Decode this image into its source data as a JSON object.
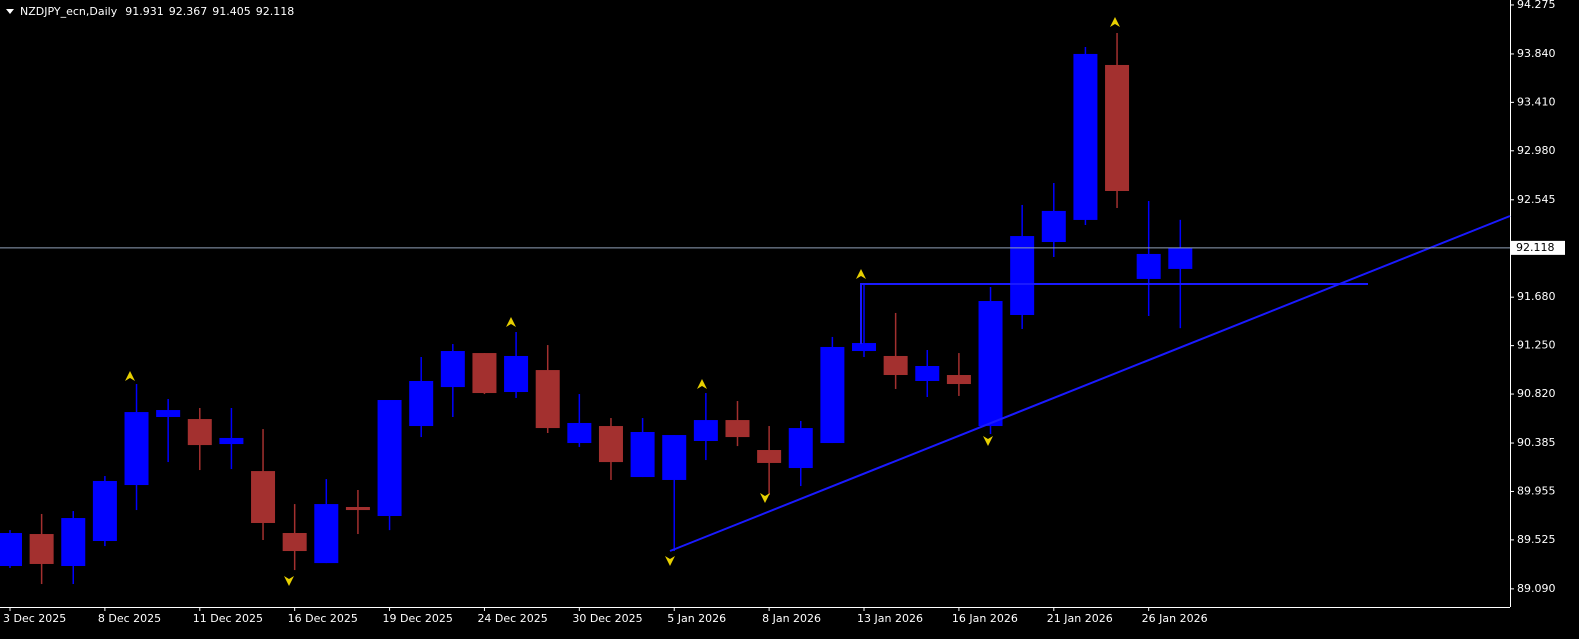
{
  "chart_data": {
    "type": "candlestick",
    "title": "NZDJPY_ecn,Daily",
    "categories": [
      "3 Dec 2025",
      null,
      null,
      "8 Dec 2025",
      null,
      null,
      "11 Dec 2025",
      null,
      null,
      "16 Dec 2025",
      null,
      null,
      "19 Dec 2025",
      null,
      null,
      "24 Dec 2025",
      null,
      null,
      "30 Dec 2025",
      null,
      null,
      "5 Jan 2026",
      null,
      null,
      "8 Jan 2026",
      null,
      null,
      "13 Jan 2026",
      null,
      null,
      "16 Jan 2026",
      null,
      null,
      "21 Jan 2026",
      null,
      null,
      "26 Jan 2026",
      null
    ],
    "open": [
      89.293,
      89.577,
      89.293,
      89.515,
      90.012,
      90.616,
      90.598,
      90.376,
      90.136,
      89.586,
      89.319,
      89.817,
      89.737,
      90.536,
      90.882,
      91.184,
      90.838,
      91.033,
      90.385,
      90.536,
      90.083,
      90.057,
      90.403,
      90.589,
      90.323,
      90.163,
      90.385,
      91.202,
      91.158,
      90.936,
      90.989,
      90.536,
      91.522,
      92.17,
      92.366,
      93.742,
      91.842,
      91.931
    ],
    "high": [
      89.612,
      89.755,
      89.781,
      90.092,
      90.909,
      90.776,
      90.696,
      90.696,
      90.509,
      89.843,
      90.065,
      89.968,
      90.767,
      91.149,
      91.264,
      91.184,
      91.371,
      91.255,
      90.82,
      90.607,
      90.607,
      90.456,
      90.829,
      90.758,
      90.536,
      90.581,
      91.327,
      91.797,
      91.54,
      91.211,
      91.184,
      91.771,
      92.499,
      92.694,
      93.902,
      94.026,
      92.534,
      92.367
    ],
    "low": [
      89.275,
      89.133,
      89.133,
      89.47,
      89.79,
      90.216,
      90.145,
      90.154,
      89.524,
      89.257,
      89.319,
      89.577,
      89.612,
      90.438,
      90.616,
      90.82,
      90.785,
      90.474,
      90.35,
      90.057,
      90.083,
      89.426,
      90.234,
      90.358,
      89.923,
      90.003,
      90.385,
      91.149,
      90.865,
      90.794,
      90.803,
      90.465,
      91.398,
      92.037,
      92.321,
      92.472,
      91.513,
      91.405
    ],
    "close": [
      89.586,
      89.311,
      89.719,
      90.048,
      90.66,
      90.678,
      90.367,
      90.43,
      89.675,
      89.426,
      89.843,
      89.79,
      90.767,
      90.936,
      91.202,
      90.829,
      91.158,
      90.518,
      90.563,
      90.216,
      90.483,
      90.456,
      90.589,
      90.438,
      90.208,
      90.518,
      91.238,
      91.273,
      90.989,
      91.069,
      90.909,
      91.646,
      92.223,
      92.446,
      93.84,
      92.623,
      92.064,
      92.118
    ],
    "up_color": "#0000ff",
    "down_color": "#a3302f",
    "ylim": [
      88.929,
      94.319
    ],
    "yticks": [
      {
        "value": 89.09,
        "label": "89.090"
      },
      89.525,
      89.955,
      90.385,
      {
        "value": 90.82,
        "label": "90.820"
      },
      {
        "value": 91.25,
        "label": "91.250"
      },
      {
        "value": 91.68,
        "label": "91.680"
      },
      92.545,
      {
        "value": 92.98,
        "label": "92.980"
      },
      {
        "value": 93.41,
        "label": "93.410"
      },
      {
        "value": 93.84,
        "label": "93.840"
      },
      94.275
    ]
  }
}
